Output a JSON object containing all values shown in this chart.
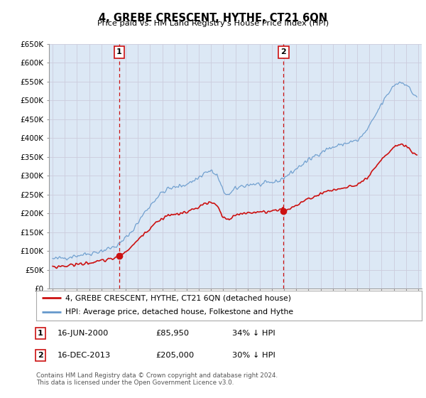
{
  "title": "4, GREBE CRESCENT, HYTHE, CT21 6QN",
  "subtitle": "Price paid vs. HM Land Registry's House Price Index (HPI)",
  "hpi_color": "#6699cc",
  "price_color": "#cc1111",
  "vline_color": "#cc1111",
  "grid_color": "#ccccdd",
  "bg_color": "#dce8f5",
  "plot_bg": "#dce8f5",
  "ylim": [
    0,
    650000
  ],
  "yticks": [
    0,
    50000,
    100000,
    150000,
    200000,
    250000,
    300000,
    350000,
    400000,
    450000,
    500000,
    550000,
    600000,
    650000
  ],
  "ytick_labels": [
    "£0",
    "£50K",
    "£100K",
    "£150K",
    "£200K",
    "£250K",
    "£300K",
    "£350K",
    "£400K",
    "£450K",
    "£500K",
    "£550K",
    "£600K",
    "£650K"
  ],
  "sale1_date": 2000.46,
  "sale1_price": 85950,
  "sale1_label": "1",
  "sale2_date": 2013.96,
  "sale2_price": 205000,
  "sale2_label": "2",
  "legend_line1": "4, GREBE CRESCENT, HYTHE, CT21 6QN (detached house)",
  "legend_line2": "HPI: Average price, detached house, Folkestone and Hythe",
  "footer1": "Contains HM Land Registry data © Crown copyright and database right 2024.",
  "footer2": "This data is licensed under the Open Government Licence v3.0.",
  "table_row1_num": "1",
  "table_row1_date": "16-JUN-2000",
  "table_row1_price": "£85,950",
  "table_row1_hpi": "34% ↓ HPI",
  "table_row2_num": "2",
  "table_row2_date": "16-DEC-2013",
  "table_row2_price": "£205,000",
  "table_row2_hpi": "30% ↓ HPI"
}
